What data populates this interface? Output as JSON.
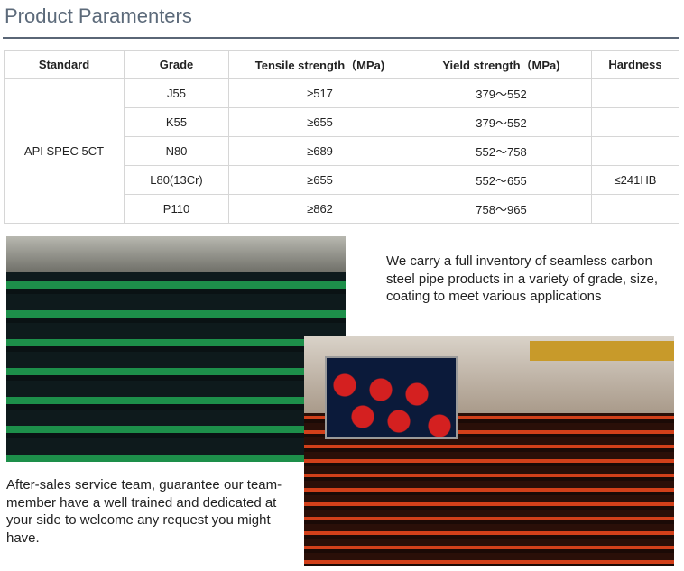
{
  "title": "Product Paramenters",
  "table": {
    "headers": [
      "Standard",
      "Grade",
      "Tensile strength（MPa)",
      "Yield strength（MPa)",
      "Hardness"
    ],
    "standard": "API SPEC 5CT",
    "rows": [
      {
        "grade": "J55",
        "tensile": "≥517",
        "yield": "379～552",
        "hardness": ""
      },
      {
        "grade": "K55",
        "tensile": "≥655",
        "yield": "379～552",
        "hardness": ""
      },
      {
        "grade": "N80",
        "tensile": "≥689",
        "yield": "552～758",
        "hardness": ""
      },
      {
        "grade": "L80(13Cr)",
        "tensile": "≥655",
        "yield": "552～655",
        "hardness": "≤241HB"
      },
      {
        "grade": "P110",
        "tensile": "≥862",
        "yield": "758～965",
        "hardness": ""
      }
    ]
  },
  "text_inventory": "We carry a full inventory of seamless carbon steel pipe products in a variety of grade, size, coating  to meet various applications",
  "text_service": "After-sales service team, guarantee our team-member have a well trained and dedicated at your side to welcome any request you might have."
}
